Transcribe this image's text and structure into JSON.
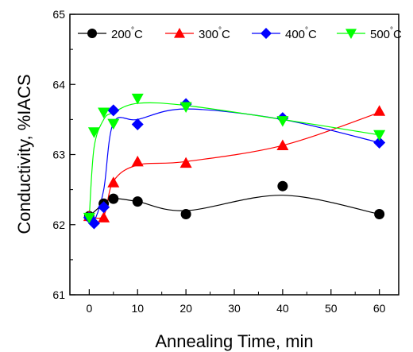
{
  "chart_data": {
    "type": "line",
    "xlabel": "Annealing Time, min",
    "ylabel": "Conductivity, %IACS",
    "xlim": [
      -4,
      64
    ],
    "ylim": [
      61,
      65
    ],
    "xticks": [
      0,
      10,
      20,
      30,
      40,
      50,
      60
    ],
    "yticks": [
      61,
      62,
      63,
      64,
      65
    ],
    "legend_position": "top",
    "series": [
      {
        "name": "200",
        "unit": "°C",
        "color": "#000000",
        "marker": "circle",
        "x": [
          0,
          3,
          5,
          10,
          20,
          40,
          60
        ],
        "y": [
          62.12,
          62.3,
          62.37,
          62.33,
          62.15,
          62.55,
          62.15
        ],
        "curve_y": [
          62.12,
          62.3,
          62.37,
          62.33,
          62.2,
          62.42,
          62.15
        ]
      },
      {
        "name": "300",
        "unit": "°C",
        "color": "#ff0000",
        "marker": "triangle-up",
        "x": [
          0,
          3,
          5,
          10,
          20,
          40,
          60
        ],
        "y": [
          62.12,
          62.1,
          62.6,
          62.9,
          62.88,
          63.13,
          63.62
        ],
        "curve_y": [
          62.12,
          62.13,
          62.62,
          62.85,
          62.9,
          63.13,
          63.6
        ]
      },
      {
        "name": "400",
        "unit": "°C",
        "color": "#0000ff",
        "marker": "diamond",
        "x": [
          0,
          1,
          3,
          5,
          10,
          20,
          40,
          60
        ],
        "y": [
          62.1,
          62.02,
          62.25,
          63.63,
          63.43,
          63.72,
          63.52,
          63.17
        ],
        "curve_y": [
          62.1,
          62.05,
          62.5,
          63.45,
          63.5,
          63.65,
          63.5,
          63.17
        ]
      },
      {
        "name": "500",
        "unit": "°C",
        "color": "#00ff00",
        "marker": "triangle-down",
        "x": [
          0,
          1,
          3,
          5,
          10,
          20,
          40,
          60
        ],
        "y": [
          62.1,
          63.32,
          63.6,
          63.44,
          63.8,
          63.68,
          63.48,
          63.28
        ],
        "curve_y": [
          62.1,
          63.1,
          63.5,
          63.6,
          63.73,
          63.7,
          63.5,
          63.28
        ]
      }
    ]
  }
}
